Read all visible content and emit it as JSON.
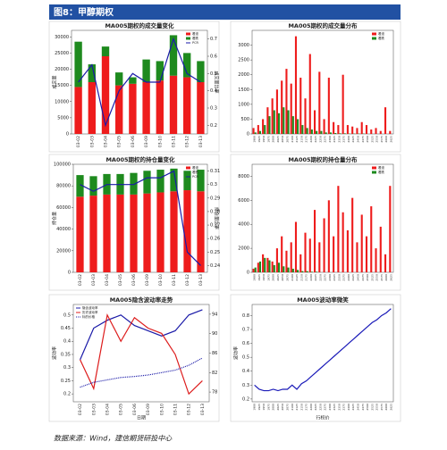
{
  "header": {
    "title": "图8：甲醇期权"
  },
  "footer": {
    "source": "数据来源：Wind，建信期货研投中心"
  },
  "chart_data": [
    {
      "type": "bar",
      "stacked": true,
      "title": "MA005期权的成交量变化",
      "ylabel": "成交量",
      "y2label": "成交量比率",
      "categories": [
        "03-02",
        "03-03",
        "03-04",
        "03-05",
        "03-06",
        "03-09",
        "03-10",
        "03-11",
        "03-12",
        "03-13"
      ],
      "series": [
        {
          "name": "看涨",
          "type": "bar",
          "color": "#ee1c1c",
          "values": [
            14500,
            16000,
            24000,
            15000,
            15500,
            16000,
            16500,
            18000,
            17500,
            16000
          ]
        },
        {
          "name": "看跌",
          "type": "bar",
          "color": "#1e8a1e",
          "values": [
            14000,
            5500,
            3000,
            4000,
            2000,
            7000,
            6000,
            12500,
            7500,
            6500
          ]
        },
        {
          "name": "PCR",
          "type": "line",
          "axis": "y2",
          "color": "#1a1aa8",
          "values": [
            0.45,
            0.55,
            0.2,
            0.4,
            0.5,
            0.45,
            0.45,
            0.7,
            0.5,
            0.45
          ]
        }
      ],
      "ylim": [
        0,
        32000
      ],
      "yticks": [
        0,
        5000,
        10000,
        15000,
        20000,
        25000,
        30000
      ],
      "y2lim": [
        0.15,
        0.75
      ],
      "y2ticks": [
        0.2,
        0.3,
        0.4,
        0.5,
        0.6,
        0.7
      ],
      "legend": "upper right"
    },
    {
      "type": "bar",
      "stacked": false,
      "title": "MA005期权的成交量分布",
      "categories": [
        "1900",
        "1925",
        "1950",
        "1975",
        "2000",
        "2025",
        "2050",
        "2075",
        "2100",
        "2125",
        "2150",
        "2175",
        "2200",
        "2225",
        "2250",
        "2275",
        "2300",
        "2325",
        "2350",
        "2375",
        "2400",
        "2425",
        "2450",
        "2475",
        "2500",
        "2525",
        "2550",
        "2575",
        "2600",
        "2625"
      ],
      "series": [
        {
          "name": "看涨",
          "type": "bar",
          "color": "#ee1c1c",
          "values": [
            200,
            300,
            500,
            900,
            1200,
            1500,
            1800,
            2200,
            1700,
            3300,
            1900,
            1200,
            2700,
            800,
            2100,
            500,
            1900,
            400,
            300,
            2000,
            300,
            250,
            200,
            400,
            300,
            150,
            200,
            100,
            900,
            100
          ]
        },
        {
          "name": "看跌",
          "type": "bar",
          "color": "#1e8a1e",
          "values": [
            50,
            100,
            300,
            600,
            800,
            700,
            900,
            800,
            600,
            500,
            300,
            200,
            150,
            100,
            100,
            50,
            50,
            30,
            20,
            20,
            10,
            10,
            10,
            10,
            0,
            0,
            0,
            0,
            0,
            0
          ]
        }
      ],
      "ylim": [
        0,
        3500
      ],
      "yticks": [
        0,
        500,
        1000,
        1500,
        2000,
        2500,
        3000
      ],
      "legend": "upper right"
    },
    {
      "type": "bar",
      "stacked": true,
      "title": "MA005期权的持仓量变化",
      "ylabel": "持仓量",
      "y2label": "持仓量比率",
      "categories": [
        "03-02",
        "03-03",
        "03-04",
        "03-05",
        "03-06",
        "03-09",
        "03-10",
        "03-11",
        "03-12",
        "03-13"
      ],
      "series": [
        {
          "name": "看涨",
          "type": "bar",
          "color": "#ee1c1c",
          "values": [
            70000,
            71000,
            72000,
            72000,
            72000,
            73000,
            74000,
            75000,
            76000,
            75000
          ]
        },
        {
          "name": "看跌",
          "type": "bar",
          "color": "#1e8a1e",
          "values": [
            20000,
            18000,
            19000,
            19000,
            20000,
            21000,
            21000,
            21000,
            18000,
            20000
          ]
        },
        {
          "name": "PCR",
          "type": "line",
          "axis": "y2",
          "color": "#1a1aa8",
          "values": [
            0.3,
            0.295,
            0.3,
            0.3,
            0.3,
            0.305,
            0.305,
            0.31,
            0.25,
            0.24
          ]
        }
      ],
      "ylim": [
        0,
        100000
      ],
      "yticks": [
        0,
        20000,
        40000,
        60000,
        80000,
        100000
      ],
      "y2lim": [
        0.235,
        0.315
      ],
      "y2ticks": [
        0.24,
        0.25,
        0.26,
        0.27,
        0.28,
        0.29,
        0.3,
        0.31
      ],
      "legend": "upper right"
    },
    {
      "type": "bar",
      "stacked": false,
      "title": "MA005期权的持仓量分布",
      "categories": [
        "1900",
        "1925",
        "1950",
        "1975",
        "2000",
        "2025",
        "2050",
        "2075",
        "2100",
        "2125",
        "2150",
        "2175",
        "2200",
        "2225",
        "2250",
        "2275",
        "2300",
        "2325",
        "2350",
        "2375",
        "2400",
        "2425",
        "2450",
        "2475",
        "2500",
        "2525",
        "2550",
        "2575",
        "2600",
        "2625"
      ],
      "series": [
        {
          "name": "看涨",
          "type": "bar",
          "color": "#ee1c1c",
          "values": [
            300,
            800,
            1500,
            1200,
            900,
            2000,
            3000,
            1800,
            2500,
            4200,
            1500,
            3300,
            2800,
            5200,
            2500,
            4500,
            6000,
            3000,
            7200,
            5000,
            3500,
            6200,
            2500,
            4800,
            3000,
            5500,
            2000,
            3800,
            1500,
            7200
          ]
        },
        {
          "name": "看跌",
          "type": "bar",
          "color": "#1e8a1e",
          "values": [
            400,
            900,
            1200,
            1000,
            600,
            800,
            500,
            400,
            300,
            200,
            100,
            100,
            50,
            50,
            0,
            0,
            0,
            0,
            0,
            0,
            0,
            0,
            0,
            0,
            0,
            0,
            0,
            0,
            0,
            0
          ]
        }
      ],
      "ylim": [
        0,
        9000
      ],
      "yticks": [
        0,
        2000,
        4000,
        6000,
        8000
      ],
      "legend": "upper right"
    },
    {
      "type": "line",
      "title": "MA005隐含波动率走势",
      "ylabel": "波动率",
      "xlabel": "日期",
      "categories": [
        "03-02",
        "03-03",
        "03-04",
        "03-05",
        "03-06",
        "03-09",
        "03-10",
        "03-11",
        "03-12",
        "03-13"
      ],
      "series": [
        {
          "name": "隐含波动率",
          "type": "line",
          "color": "#1a1aa8",
          "values": [
            0.33,
            0.45,
            0.48,
            0.5,
            0.46,
            0.44,
            0.42,
            0.44,
            0.5,
            0.52
          ]
        },
        {
          "name": "历史波动率",
          "type": "line",
          "color": "#dd1c1c",
          "values": [
            0.33,
            0.22,
            0.5,
            0.4,
            0.49,
            0.45,
            0.43,
            0.35,
            0.2,
            0.25
          ]
        },
        {
          "name": "标的价格",
          "type": "line",
          "axis": "y2",
          "dash": true,
          "color": "#1a1aa8",
          "values": [
            79,
            80,
            80.5,
            81,
            81.2,
            81.5,
            82,
            82.5,
            83.5,
            85
          ]
        }
      ],
      "ylim": [
        0.17,
        0.54
      ],
      "yticks": [
        0.2,
        0.25,
        0.3,
        0.35,
        0.4,
        0.45,
        0.5
      ],
      "y2lim": [
        76,
        96
      ],
      "y2ticks": [
        78,
        82,
        86,
        90,
        94
      ],
      "legend": "upper left"
    },
    {
      "type": "line",
      "title": "MA005波动率微笑",
      "ylabel": "波动率",
      "xlabel": "行权价",
      "categories": [
        "1900",
        "1925",
        "1950",
        "1975",
        "2000",
        "2025",
        "2050",
        "2075",
        "2100",
        "2125",
        "2150",
        "2175",
        "2200",
        "2225",
        "2250",
        "2275",
        "2300",
        "2325",
        "2350",
        "2375",
        "2400",
        "2425",
        "2450",
        "2475",
        "2500",
        "2525",
        "2550",
        "2575",
        "2600",
        "2625"
      ],
      "series": [
        {
          "name": "波动率",
          "type": "line",
          "color": "#1a1ab8",
          "values": [
            0.3,
            0.27,
            0.26,
            0.26,
            0.27,
            0.26,
            0.27,
            0.27,
            0.3,
            0.27,
            0.31,
            0.33,
            0.36,
            0.39,
            0.42,
            0.45,
            0.48,
            0.51,
            0.54,
            0.57,
            0.6,
            0.63,
            0.66,
            0.69,
            0.72,
            0.75,
            0.77,
            0.8,
            0.82,
            0.85
          ]
        }
      ],
      "ylim": [
        0.18,
        0.88
      ],
      "yticks": [
        0.2,
        0.3,
        0.4,
        0.5,
        0.6,
        0.7,
        0.8
      ]
    }
  ]
}
